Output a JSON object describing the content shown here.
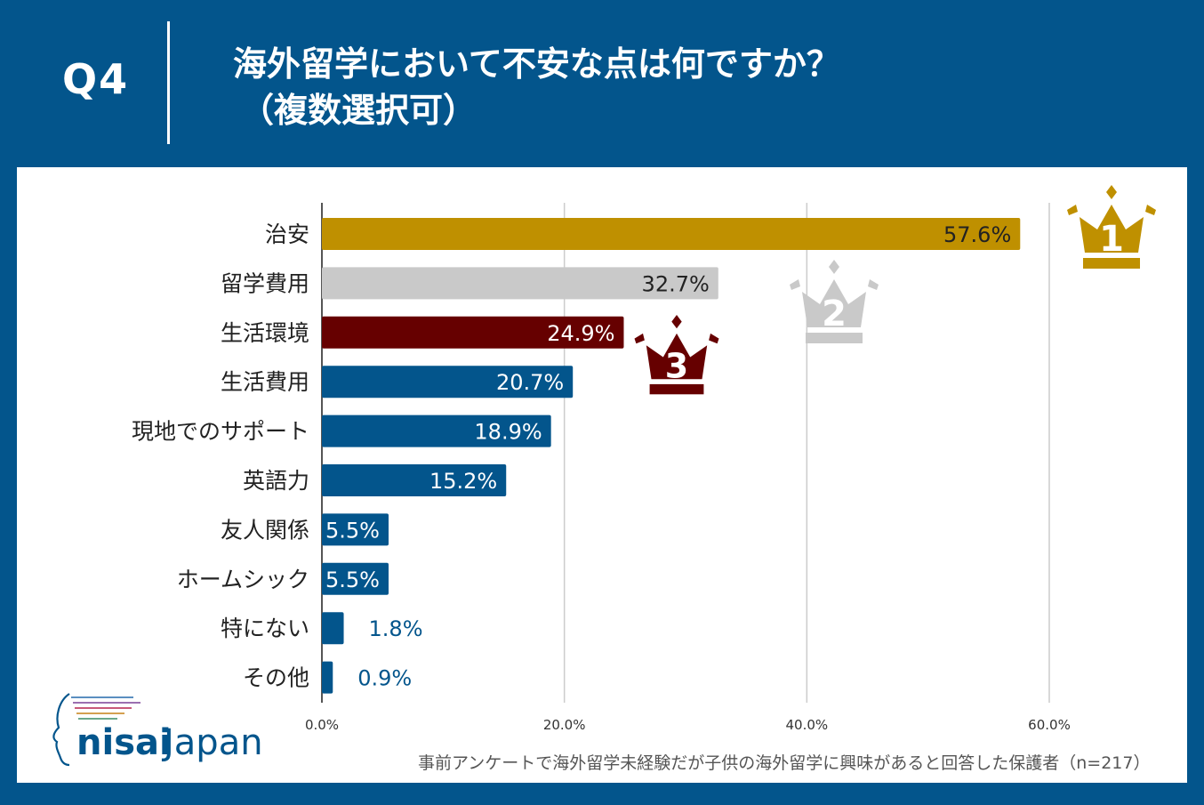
{
  "header": {
    "question_number": "Q4",
    "title_line1": "海外留学において不安な点は何ですか？",
    "title_line2": "（複数選択可）"
  },
  "chart_data": {
    "type": "bar",
    "orientation": "horizontal",
    "categories": [
      "治安",
      "留学費用",
      "生活環境",
      "生活費用",
      "現地でのサポート",
      "英語力",
      "友人関係",
      "ホームシック",
      "特にない",
      "その他"
    ],
    "values": [
      57.6,
      32.7,
      24.9,
      20.7,
      18.9,
      15.2,
      5.5,
      5.5,
      1.8,
      0.9
    ],
    "value_labels": [
      "57.6%",
      "32.7%",
      "24.9%",
      "20.7%",
      "18.9%",
      "15.2%",
      "5.5%",
      "5.5%",
      "1.8%",
      "0.9%"
    ],
    "xlim": [
      0,
      60
    ],
    "xticks": [
      0,
      20,
      40,
      60
    ],
    "xtick_labels": [
      "0.0%",
      "20.0%",
      "40.0%",
      "60.0%"
    ],
    "grid": true,
    "bar_colors": [
      "#bf9000",
      "#c9c9c9",
      "#660000",
      "#03558c",
      "#03558c",
      "#03558c",
      "#03558c",
      "#03558c",
      "#03558c",
      "#03558c"
    ],
    "label_colors": [
      "#222222",
      "#222222",
      "#ffffff",
      "#ffffff",
      "#ffffff",
      "#ffffff",
      "#ffffff",
      "#ffffff",
      "#03558c",
      "#03558c"
    ],
    "rank_badges": [
      {
        "rank": "1",
        "category": "治安",
        "color": "#bf9000"
      },
      {
        "rank": "2",
        "category": "留学費用",
        "color": "#c9c9c9"
      },
      {
        "rank": "3",
        "category": "生活環境",
        "color": "#660000"
      }
    ]
  },
  "logo": {
    "text_left": "nisai",
    "text_right": "Japan"
  },
  "footnote": "事前アンケートで海外留学未経験だが子供の海外留学に興味があると回答した保護者（n=217）",
  "colors": {
    "background": "#03558c",
    "panel": "#ffffff"
  }
}
